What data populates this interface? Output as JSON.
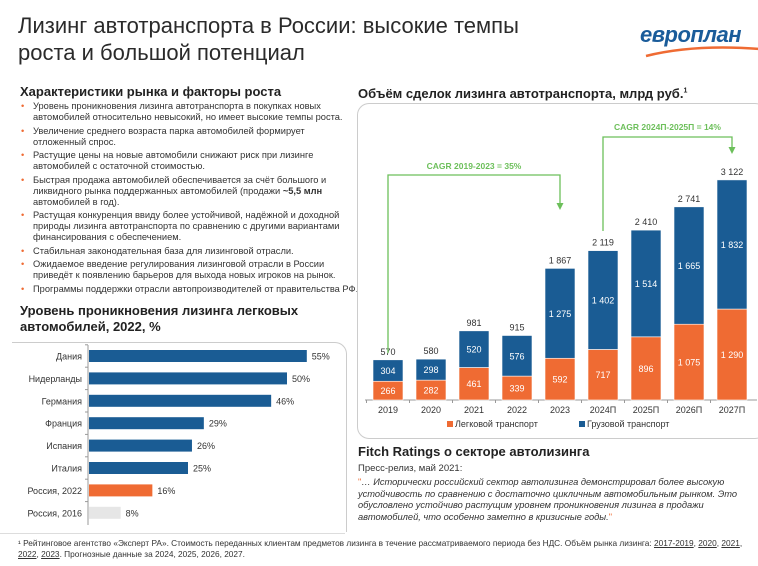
{
  "header": {
    "title_line1": "Лизинг автотранспорта в России: высокие темпы",
    "title_line2": "роста и большой потенциал",
    "logo_text": "европлан"
  },
  "factors": {
    "title": "Характеристики рынка и факторы роста",
    "items": [
      "Уровень проникновения лизинга автотранспорта в покупках новых автомобилей относительно невысокий, но имеет высокие темпы роста.",
      "Увеличение среднего возраста парка автомобилей формирует отложенный спрос.",
      "Растущие цены на новые автомобили снижают риск при лизинге автомобилей с остаточной стоимостью.",
      "Быстрая продажа автомобилей обеспечивается за счёт большого и ликвидного рынка поддержанных автомобилей (продажи ",
      "Растущая конкуренция ввиду более устойчивой, надёжной и доходной природы лизинга автотранспорта по сравнению с другими вариантами финансирования с обеспечением.",
      "Стабильная законодательная база для лизинговой отрасли.",
      "Ожидаемое введение регулирования лизинговой отрасли в России приведёт к появлению барьеров для выхода новых игроков на рынок.",
      "Программы поддержки отрасли автопроизводителей от правительства РФ."
    ],
    "item4_bold": "~5,5 млн",
    "item4_tail": " автомобилей в год)."
  },
  "fitch": {
    "title": "Fitch Ratings о секторе автолизинга",
    "subtitle": "Пресс-релиз, май 2021:",
    "open_quote": "\"",
    "quote": "… Исторически российский сектор автолизинга демонстрировал более высокую устойчивость по сравнению с достаточно цикличным автомобильным рынком. Это обусловлено устойчиво растущим уровнем проникновения лизинга в продажи автомобилей, что особенно заметно в кризисные годы.",
    "close_quote": "\""
  },
  "footnote": {
    "text": "¹ Рейтинговое агентство «Эксперт РА». Стоимость переданных клиентам предметов лизинга в течение рассматриваемого периода без НДС. Объём рынка лизинга: ",
    "links": [
      "2017-2019",
      "2020",
      "2021",
      "2022",
      "2023"
    ],
    "tail": ". Прогнозные данные за 2024, 2025, 2026, 2027."
  },
  "colors": {
    "blue": "#1a5c94",
    "orange": "#ef6b33",
    "gray": "#e6e6e6",
    "green": "#6cbf5a"
  },
  "chart_data": [
    {
      "type": "bar",
      "orientation": "horizontal",
      "title": "Уровень проникновения лизинга легковых автомобилей, 2022, %",
      "categories": [
        "Дания",
        "Нидерланды",
        "Германия",
        "Франция",
        "Испания",
        "Италия",
        "Россия, 2022",
        "Россия, 2016"
      ],
      "values": [
        55,
        50,
        46,
        29,
        26,
        25,
        16,
        8
      ],
      "labels": [
        "55%",
        "50%",
        "46%",
        "29%",
        "26%",
        "25%",
        "16%",
        "8%"
      ],
      "bar_colors": [
        "#1a5c94",
        "#1a5c94",
        "#1a5c94",
        "#1a5c94",
        "#1a5c94",
        "#1a5c94",
        "#ef6b33",
        "#e6e6e6"
      ],
      "grid": false
    },
    {
      "type": "bar",
      "stacked": true,
      "title": "Объём сделок лизинга автотранспорта, млрд руб.",
      "title_sup": "1",
      "categories": [
        "2019",
        "2020",
        "2021",
        "2022",
        "2023",
        "2024П",
        "2025П",
        "2026П",
        "2027П"
      ],
      "series": [
        {
          "name": "Легковой транспорт",
          "color": "#ef6b33",
          "values": [
            266,
            282,
            461,
            339,
            592,
            717,
            896,
            1075,
            1290
          ],
          "labels": [
            "266",
            "282",
            "461",
            "339",
            "592",
            "717",
            "896",
            "1 075",
            "1 290"
          ]
        },
        {
          "name": "Грузовой транспорт",
          "color": "#1a5c94",
          "values": [
            304,
            298,
            520,
            576,
            1275,
            1402,
            1514,
            1665,
            1832
          ],
          "labels": [
            "304",
            "298",
            "520",
            "576",
            "1 275",
            "1 402",
            "1 514",
            "1 665",
            "1 832"
          ]
        }
      ],
      "totals": [
        "570",
        "580",
        "981",
        "915",
        "1 867",
        "2 119",
        "2 410",
        "2 741",
        "3 122"
      ],
      "annotations": [
        "CAGR 2019-2023 = 35%",
        "CAGR 2024П-2025П = 14%"
      ],
      "legend": "bottom",
      "grid": false
    }
  ]
}
